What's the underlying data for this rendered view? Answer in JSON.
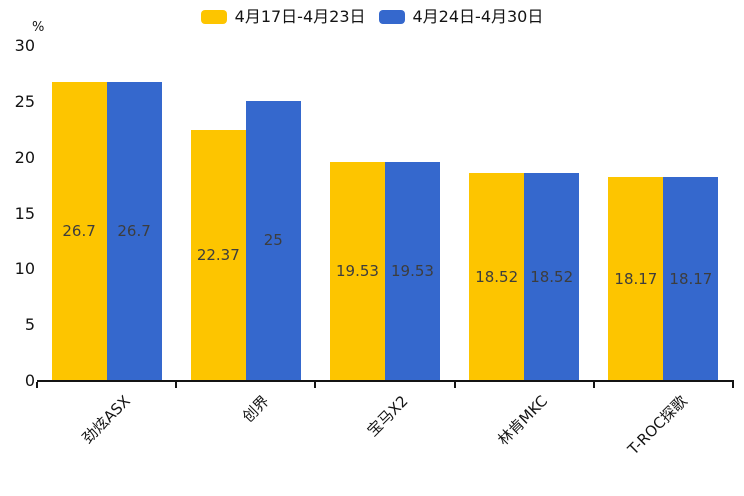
{
  "chart_data": {
    "type": "bar",
    "title": "",
    "categories": [
      "劲炫ASX",
      "创界",
      "宝马X2",
      "林肯MKC",
      "T-ROC探歌"
    ],
    "series": [
      {
        "name": "4月17日-4月23日",
        "color": "#FDC500",
        "values": [
          26.7,
          22.37,
          19.53,
          18.52,
          18.17
        ]
      },
      {
        "name": "4月24日-4月30日",
        "color": "#3568CD",
        "values": [
          26.7,
          25,
          19.53,
          18.52,
          18.17
        ]
      }
    ],
    "xlabel": "",
    "ylabel": "%",
    "ylim": [
      0,
      30
    ],
    "y_ticks": [
      0,
      5,
      10,
      15,
      20,
      25,
      30
    ],
    "grid": false,
    "legend_position": "top-center",
    "value_labels_shown": true,
    "value_label_color": "#3d3d3d",
    "axis_color": "#141414",
    "x_tick_rotation_deg": 45
  }
}
